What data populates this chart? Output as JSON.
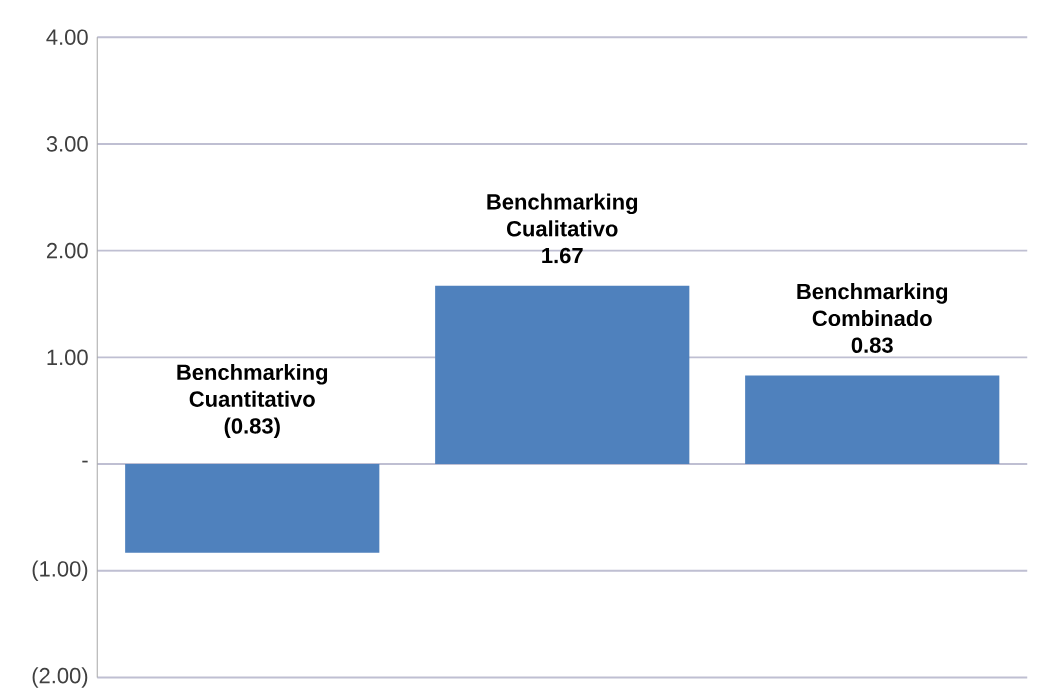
{
  "chart_data": {
    "type": "bar",
    "categories": [
      "Benchmarking Cuantitativo",
      "Benchmarking Cualitativo",
      "Benchmarking Combinado"
    ],
    "values": [
      -0.83,
      1.67,
      0.83
    ],
    "value_labels": [
      "(0.83)",
      "1.67",
      "0.83"
    ],
    "color": "#4f81bd",
    "ylim": [
      -2,
      4
    ],
    "yticks": [
      {
        "value": -2,
        "label": "(2.00)"
      },
      {
        "value": -1,
        "label": "(1.00)"
      },
      {
        "value": 0,
        "label": "-"
      },
      {
        "value": 1,
        "label": "1.00"
      },
      {
        "value": 2,
        "label": "2.00"
      },
      {
        "value": 3,
        "label": "3.00"
      },
      {
        "value": 4,
        "label": "4.00"
      }
    ],
    "grid": "y",
    "tick_labels": "y"
  }
}
